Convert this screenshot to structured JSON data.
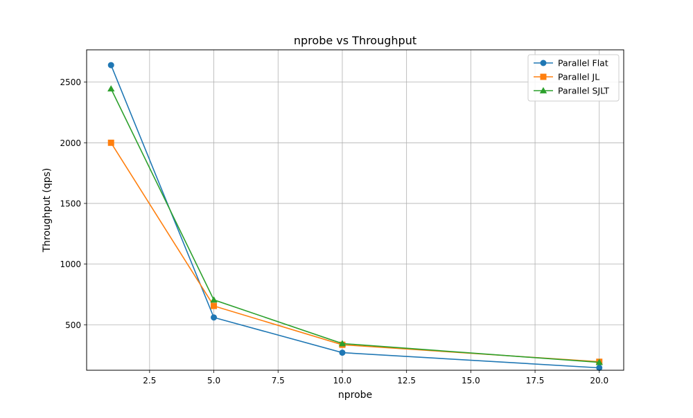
{
  "chart_data": {
    "type": "line",
    "title": "nprobe vs Throughput",
    "xlabel": "nprobe",
    "ylabel": "Throughput (qps)",
    "xlim": [
      0.05,
      20.95
    ],
    "ylim": [
      125,
      2766
    ],
    "x_ticks": [
      2.5,
      5.0,
      7.5,
      10.0,
      12.5,
      15.0,
      17.5,
      20.0
    ],
    "x_tick_labels": [
      "2.5",
      "5.0",
      "7.5",
      "10.0",
      "12.5",
      "15.0",
      "17.5",
      "20.0"
    ],
    "y_ticks": [
      500,
      1000,
      1500,
      2000,
      2500
    ],
    "y_tick_labels": [
      "500",
      "1000",
      "1500",
      "2000",
      "2500"
    ],
    "grid": true,
    "legend_position": "top-right",
    "x": [
      1,
      5,
      10,
      20
    ],
    "series": [
      {
        "name": "Parallel Flat",
        "values": [
          2640,
          560,
          270,
          145
        ],
        "color": "#1f77b4",
        "marker": "circle"
      },
      {
        "name": "Parallel JL",
        "values": [
          2000,
          655,
          335,
          195
        ],
        "color": "#ff7f0e",
        "marker": "square"
      },
      {
        "name": "Parallel SJLT",
        "values": [
          2445,
          705,
          345,
          190
        ],
        "color": "#2ca02c",
        "marker": "triangle"
      }
    ]
  }
}
